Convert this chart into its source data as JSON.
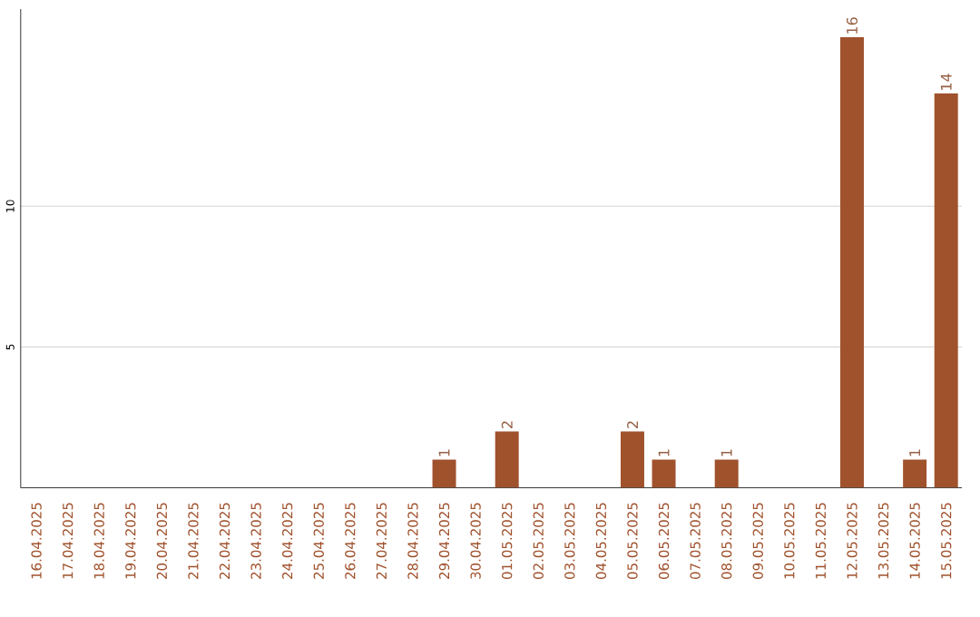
{
  "chart_data": {
    "type": "bar",
    "categories": [
      "16.04.2025",
      "17.04.2025",
      "18.04.2025",
      "19.04.2025",
      "20.04.2025",
      "21.04.2025",
      "22.04.2025",
      "23.04.2025",
      "24.04.2025",
      "25.04.2025",
      "26.04.2025",
      "27.04.2025",
      "28.04.2025",
      "29.04.2025",
      "30.04.2025",
      "01.05.2025",
      "02.05.2025",
      "03.05.2025",
      "04.05.2025",
      "05.05.2025",
      "06.05.2025",
      "07.05.2025",
      "08.05.2025",
      "09.05.2025",
      "10.05.2025",
      "11.05.2025",
      "12.05.2025",
      "13.05.2025",
      "14.05.2025",
      "15.05.2025"
    ],
    "values": [
      0,
      0,
      0,
      0,
      0,
      0,
      0,
      0,
      0,
      0,
      0,
      0,
      0,
      1,
      0,
      2,
      0,
      0,
      0,
      2,
      1,
      0,
      1,
      0,
      0,
      0,
      16,
      0,
      1,
      14
    ],
    "value_labels": [
      null,
      null,
      null,
      null,
      null,
      null,
      null,
      null,
      null,
      null,
      null,
      null,
      null,
      "1",
      null,
      "2",
      null,
      null,
      null,
      "2",
      "1",
      null,
      "1",
      null,
      null,
      null,
      "16",
      null,
      "1",
      "14"
    ],
    "color": "#a0522d",
    "ylim": [
      0,
      17
    ],
    "yticks": [
      5,
      10
    ],
    "grid": "y"
  }
}
